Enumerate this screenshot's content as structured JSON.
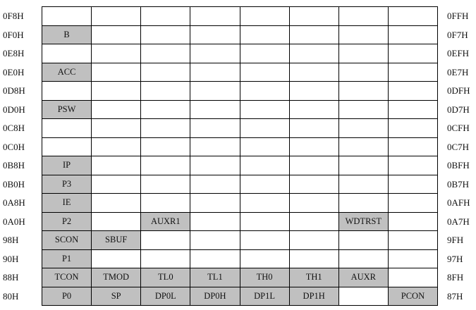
{
  "rows": [
    {
      "left": "0F8H",
      "right": "0FFH",
      "cells": [
        "",
        "",
        "",
        "",
        "",
        "",
        "",
        ""
      ]
    },
    {
      "left": "0F0H",
      "right": "0F7H",
      "cells": [
        "B",
        "",
        "",
        "",
        "",
        "",
        "",
        ""
      ]
    },
    {
      "left": "0E8H",
      "right": "0EFH",
      "cells": [
        "",
        "",
        "",
        "",
        "",
        "",
        "",
        ""
      ]
    },
    {
      "left": "0E0H",
      "right": "0E7H",
      "cells": [
        "ACC",
        "",
        "",
        "",
        "",
        "",
        "",
        ""
      ]
    },
    {
      "left": "0D8H",
      "right": "0DFH",
      "cells": [
        "",
        "",
        "",
        "",
        "",
        "",
        "",
        ""
      ]
    },
    {
      "left": "0D0H",
      "right": "0D7H",
      "cells": [
        "PSW",
        "",
        "",
        "",
        "",
        "",
        "",
        ""
      ]
    },
    {
      "left": "0C8H",
      "right": "0CFH",
      "cells": [
        "",
        "",
        "",
        "",
        "",
        "",
        "",
        ""
      ]
    },
    {
      "left": "0C0H",
      "right": "0C7H",
      "cells": [
        "",
        "",
        "",
        "",
        "",
        "",
        "",
        ""
      ]
    },
    {
      "left": "0B8H",
      "right": "0BFH",
      "cells": [
        "IP",
        "",
        "",
        "",
        "",
        "",
        "",
        ""
      ]
    },
    {
      "left": "0B0H",
      "right": "0B7H",
      "cells": [
        "P3",
        "",
        "",
        "",
        "",
        "",
        "",
        ""
      ]
    },
    {
      "left": "0A8H",
      "right": "0AFH",
      "cells": [
        "IE",
        "",
        "",
        "",
        "",
        "",
        "",
        ""
      ]
    },
    {
      "left": "0A0H",
      "right": "0A7H",
      "cells": [
        "P2",
        "",
        "AUXR1",
        "",
        "",
        "",
        "WDTRST",
        ""
      ]
    },
    {
      "left": "98H",
      "right": "9FH",
      "cells": [
        "SCON",
        "SBUF",
        "",
        "",
        "",
        "",
        "",
        ""
      ]
    },
    {
      "left": "90H",
      "right": "97H",
      "cells": [
        "P1",
        "",
        "",
        "",
        "",
        "",
        "",
        ""
      ]
    },
    {
      "left": "88H",
      "right": "8FH",
      "cells": [
        "TCON",
        "TMOD",
        "TL0",
        "TL1",
        "TH0",
        "TH1",
        "AUXR",
        ""
      ]
    },
    {
      "left": "80H",
      "right": "87H",
      "cells": [
        "P0",
        "SP",
        "DP0L",
        "DP0H",
        "DP1L",
        "DP1H",
        "",
        "PCON"
      ]
    }
  ],
  "colors": {
    "register_fill": "#c0c0c0",
    "empty_fill": "#ffffff",
    "border": "#000000"
  }
}
